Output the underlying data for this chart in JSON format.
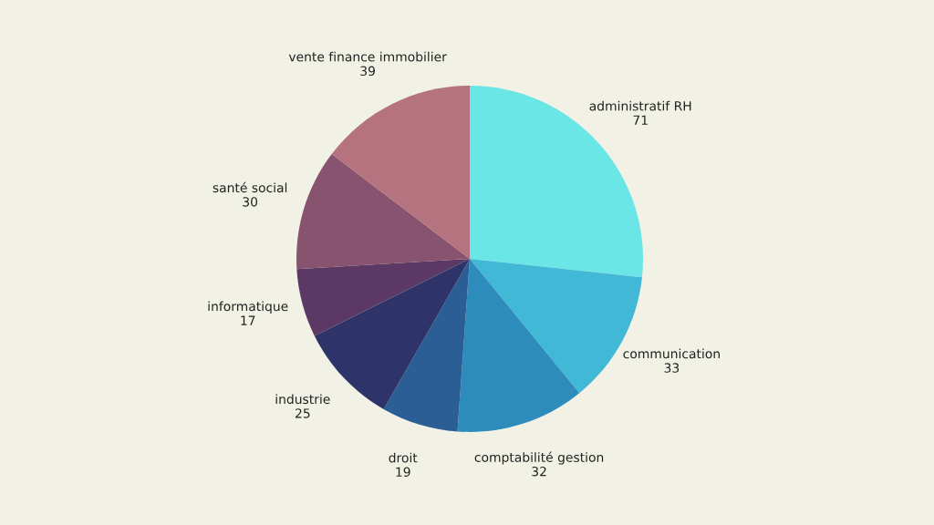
{
  "chart_data": {
    "type": "pie",
    "categories": [
      "administratif RH",
      "communication",
      "comptabilité gestion",
      "droit",
      "industrie",
      "informatique",
      "santé social",
      "vente finance immobilier"
    ],
    "values": [
      71,
      33,
      32,
      19,
      25,
      17,
      30,
      39
    ],
    "colors": [
      "#6ae6e6",
      "#40b8d6",
      "#2e8cbc",
      "#2c5e96",
      "#2e3469",
      "#5c3865",
      "#87536f",
      "#b5727f"
    ],
    "data_labels": true
  }
}
